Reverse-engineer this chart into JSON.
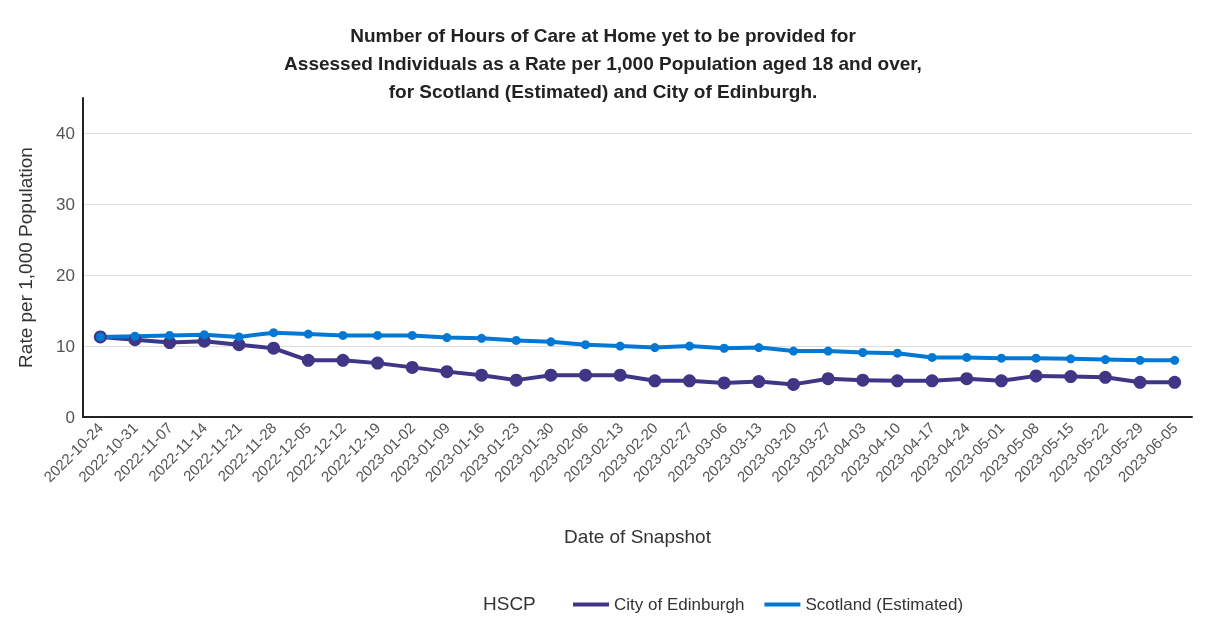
{
  "chart_data": {
    "type": "line",
    "title": "Number of Hours of Care at Home yet to be provided for\nAssessed Individuals as a Rate per 1,000 Population aged 18 and over,\nfor Scotland (Estimated) and City of Edinburgh.",
    "xlabel": "Date of Snapshot",
    "ylabel": "Rate per 1,000 Population",
    "legend_title": "HSCP",
    "categories": [
      "2022-10-24",
      "2022-10-31",
      "2022-11-07",
      "2022-11-14",
      "2022-11-21",
      "2022-11-28",
      "2022-12-05",
      "2022-12-12",
      "2022-12-19",
      "2023-01-02",
      "2023-01-09",
      "2023-01-16",
      "2023-01-23",
      "2023-01-30",
      "2023-02-06",
      "2023-02-13",
      "2023-02-20",
      "2023-02-27",
      "2023-03-06",
      "2023-03-13",
      "2023-03-20",
      "2023-03-27",
      "2023-04-03",
      "2023-04-10",
      "2023-04-17",
      "2023-04-24",
      "2023-05-01",
      "2023-05-08",
      "2023-05-15",
      "2023-05-22",
      "2023-05-29",
      "2023-06-05"
    ],
    "series": [
      {
        "name": "City of Edinburgh",
        "color": "#3f3685",
        "values": [
          11.3,
          10.9,
          10.5,
          10.7,
          10.2,
          9.7,
          8.0,
          8.0,
          7.6,
          7.0,
          6.4,
          5.9,
          5.2,
          5.9,
          5.9,
          5.9,
          5.1,
          5.1,
          4.8,
          5.0,
          4.6,
          5.4,
          5.2,
          5.1,
          5.1,
          5.4,
          5.1,
          5.8,
          5.7,
          5.6,
          4.9,
          4.9
        ]
      },
      {
        "name": "Scotland (Estimated)",
        "color": "#0078d4",
        "values": [
          11.3,
          11.4,
          11.5,
          11.6,
          11.3,
          11.9,
          11.7,
          11.5,
          11.5,
          11.5,
          11.2,
          11.1,
          10.8,
          10.6,
          10.2,
          10.0,
          9.8,
          10.0,
          9.7,
          9.8,
          9.3,
          9.3,
          9.1,
          9.0,
          8.4,
          8.4,
          8.3,
          8.3,
          8.2,
          8.1,
          8.0,
          8.0
        ]
      }
    ],
    "ylim": [
      0,
      45
    ],
    "yticks": [
      0,
      10,
      20,
      30,
      40
    ],
    "grid": "y",
    "legend": "bottom",
    "marker": "circle",
    "line_style": "solid"
  }
}
